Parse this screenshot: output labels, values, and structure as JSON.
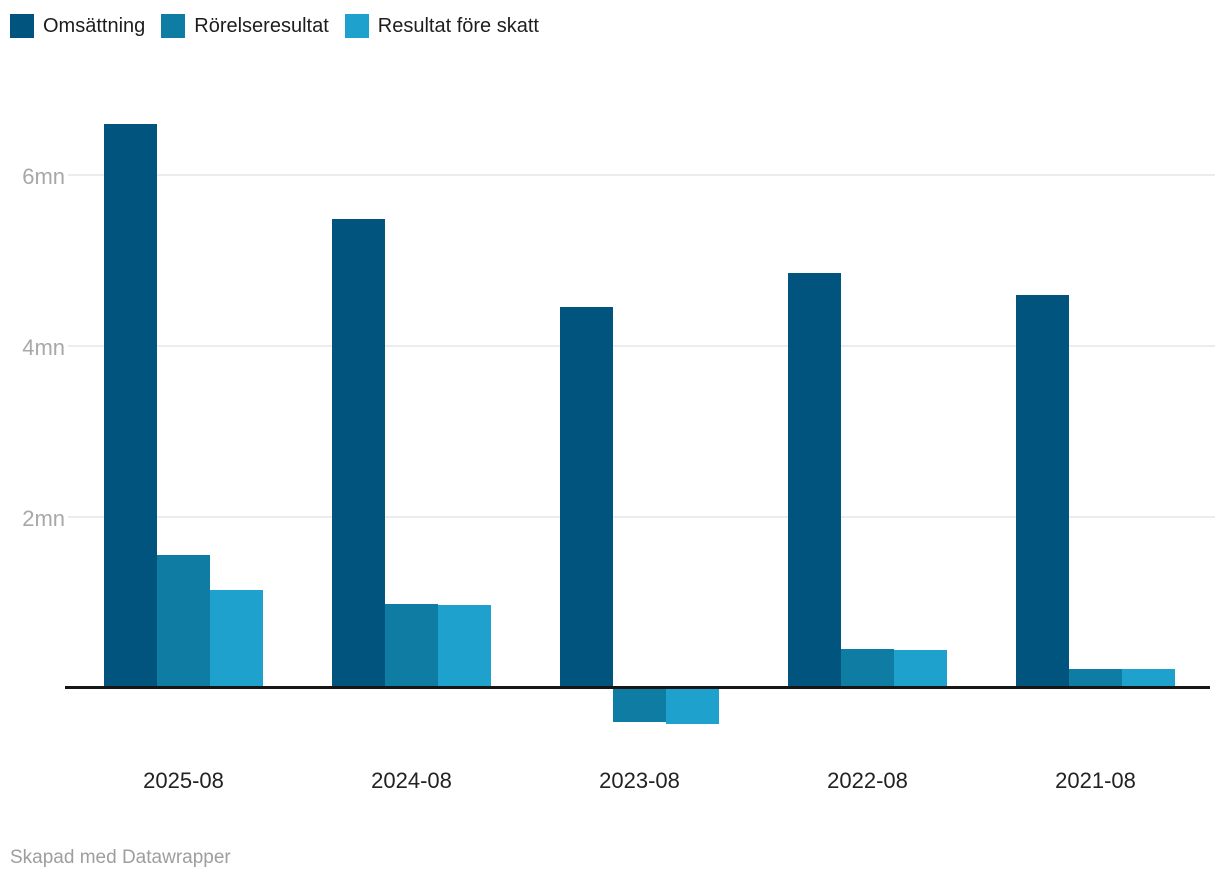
{
  "footer": {
    "credit": "Skapad med Datawrapper"
  },
  "chart_data": {
    "type": "bar",
    "title": "",
    "categories": [
      "2025-08",
      "2024-08",
      "2023-08",
      "2022-08",
      "2021-08"
    ],
    "series": [
      {
        "name": "Omsättning",
        "color": "#00547d",
        "values": [
          6.6,
          5.49,
          4.46,
          4.85,
          4.6
        ]
      },
      {
        "name": "Rörelseresultat",
        "color": "#0e7ca3",
        "values": [
          1.55,
          0.98,
          -0.4,
          0.46,
          0.22
        ]
      },
      {
        "name": "Resultat före skatt",
        "color": "#1ea1cd",
        "values": [
          1.15,
          0.97,
          -0.42,
          0.45,
          0.22
        ]
      }
    ],
    "yticks": [
      {
        "value": 2,
        "label": "2mn"
      },
      {
        "value": 4,
        "label": "4mn"
      },
      {
        "value": 6,
        "label": "6mn"
      }
    ],
    "ylim": [
      -0.45,
      6.7
    ],
    "unit": "mn",
    "grid": true,
    "legend_position": "top-left",
    "xlabel": "",
    "ylabel": ""
  }
}
